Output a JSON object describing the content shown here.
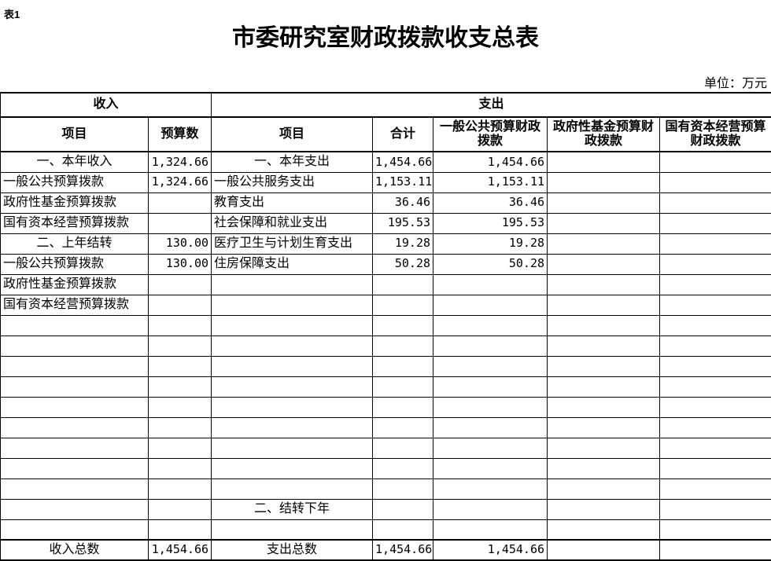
{
  "meta": {
    "table_label": "表1",
    "title": "市委研究室财政拨款收支总表",
    "unit_note": "单位：万元"
  },
  "table": {
    "group_headers": {
      "income": "收入",
      "expenditure": "支出"
    },
    "columns": [
      "项目",
      "预算数",
      "项目",
      "合计",
      "一般公共预算财政拨款",
      "政府性基金预算财政拨款",
      "国有资本经营预算财政拨款"
    ],
    "rows": [
      [
        "一、本年收入",
        "1,324.66",
        "一、本年支出",
        "1,454.66",
        "1,454.66",
        "",
        ""
      ],
      [
        "一般公共预算拨款",
        "1,324.66",
        "一般公共服务支出",
        "1,153.11",
        "1,153.11",
        "",
        ""
      ],
      [
        "政府性基金预算拨款",
        "",
        "教育支出",
        "36.46",
        "36.46",
        "",
        ""
      ],
      [
        "国有资本经营预算拨款",
        "",
        "社会保障和就业支出",
        "195.53",
        "195.53",
        "",
        ""
      ],
      [
        "二、上年结转",
        "130.00",
        "医疗卫生与计划生育支出",
        "19.28",
        "19.28",
        "",
        ""
      ],
      [
        "一般公共预算拨款",
        "130.00",
        "住房保障支出",
        "50.28",
        "50.28",
        "",
        ""
      ],
      [
        "政府性基金预算拨款",
        "",
        "",
        "",
        "",
        "",
        ""
      ],
      [
        "国有资本经营预算拨款",
        "",
        "",
        "",
        "",
        "",
        ""
      ],
      [
        "",
        "",
        "",
        "",
        "",
        "",
        ""
      ],
      [
        "",
        "",
        "",
        "",
        "",
        "",
        ""
      ],
      [
        "",
        "",
        "",
        "",
        "",
        "",
        ""
      ],
      [
        "",
        "",
        "",
        "",
        "",
        "",
        ""
      ],
      [
        "",
        "",
        "",
        "",
        "",
        "",
        ""
      ],
      [
        "",
        "",
        "",
        "",
        "",
        "",
        ""
      ],
      [
        "",
        "",
        "",
        "",
        "",
        "",
        ""
      ],
      [
        "",
        "",
        "",
        "",
        "",
        "",
        ""
      ],
      [
        "",
        "",
        "",
        "",
        "",
        "",
        ""
      ],
      [
        "",
        "",
        "二、结转下年",
        "",
        "",
        "",
        ""
      ],
      [
        "",
        "",
        "",
        "",
        "",
        "",
        ""
      ],
      [
        "收入总数",
        "1,454.66",
        "支出总数",
        "1,454.66",
        "1,454.66",
        "",
        ""
      ]
    ]
  }
}
